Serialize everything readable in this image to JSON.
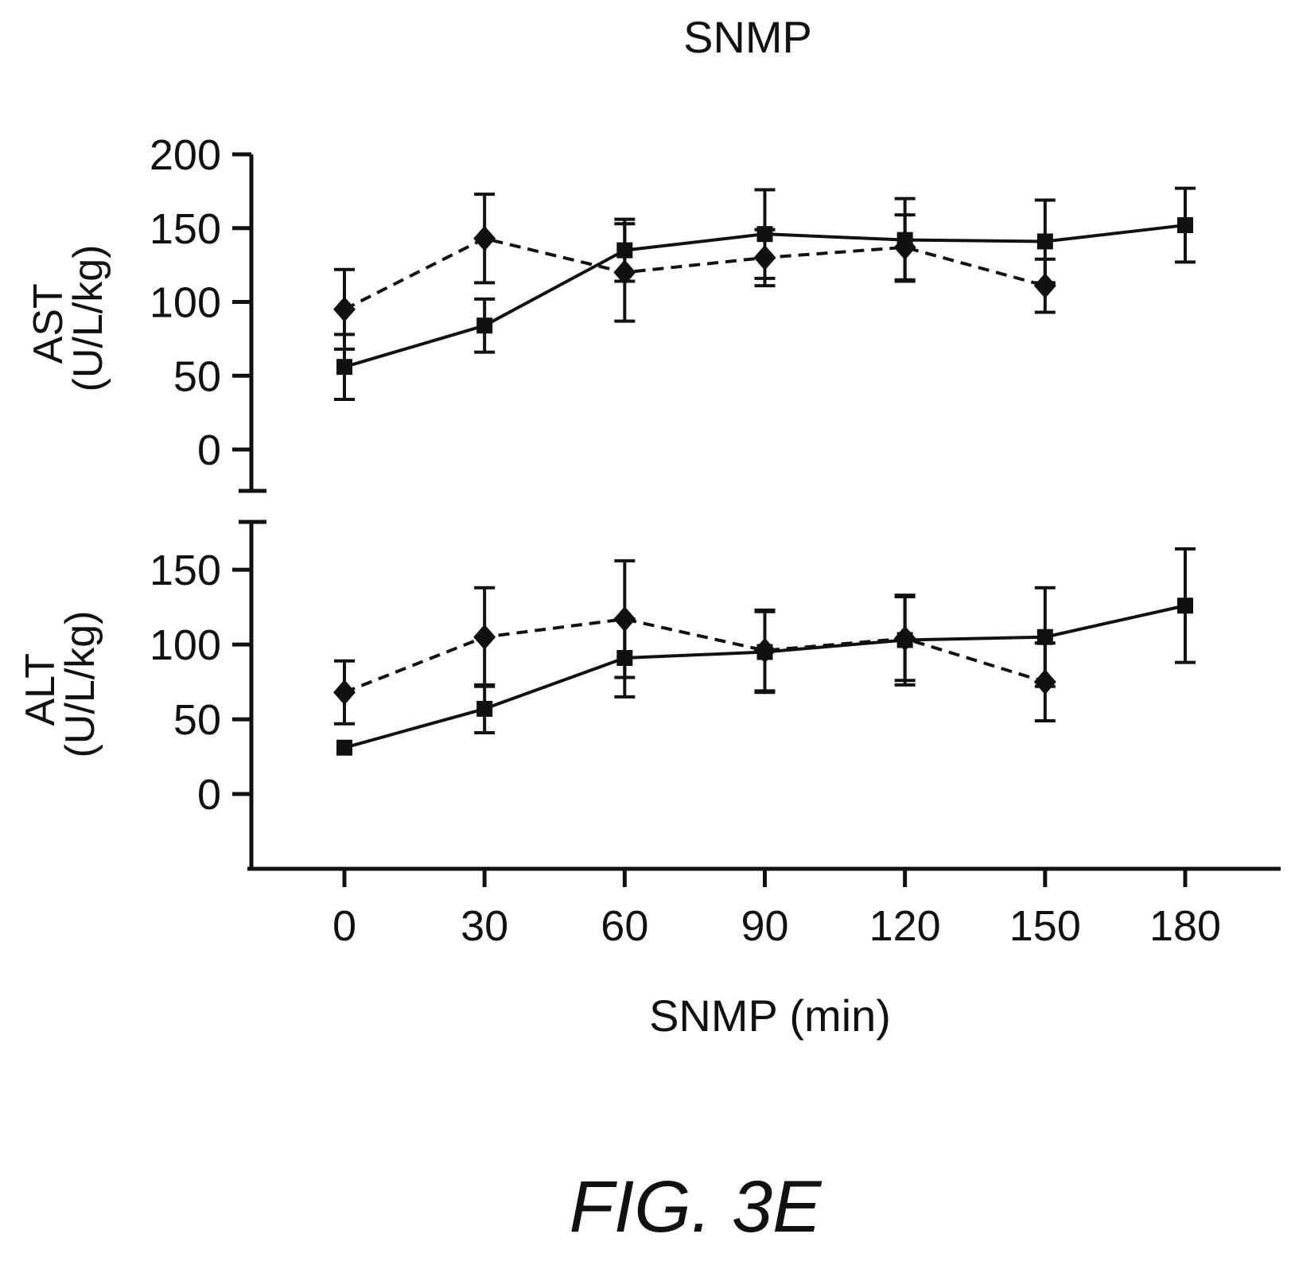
{
  "title": "SNMP",
  "caption": "FIG. 3E",
  "chart_data": [
    {
      "type": "line",
      "panel": "top",
      "ylabel_line1": "AST",
      "ylabel_line2": "(U/L/kg)",
      "ylim": [
        -28,
        200
      ],
      "yticks": [
        0,
        50,
        100,
        150,
        200
      ],
      "x": [
        0,
        30,
        60,
        90,
        120,
        150,
        180
      ],
      "series": [
        {
          "marker": "square",
          "line_style": "solid",
          "x": [
            0,
            30,
            60,
            90,
            120,
            150,
            180
          ],
          "values": [
            56,
            84,
            135,
            146,
            142,
            141,
            152
          ],
          "error": [
            22,
            18,
            21,
            30,
            28,
            28,
            25
          ]
        },
        {
          "marker": "diamond",
          "line_style": "dashed",
          "x": [
            0,
            30,
            60,
            90,
            120,
            150
          ],
          "values": [
            95,
            143,
            120,
            130,
            137,
            111
          ],
          "error": [
            27,
            30,
            33,
            19,
            22,
            18
          ]
        }
      ]
    },
    {
      "type": "line",
      "panel": "bottom",
      "ylabel_line1": "ALT",
      "ylabel_line2": "(U/L/kg)",
      "ylim": [
        -50,
        182
      ],
      "yticks": [
        0,
        50,
        100,
        150
      ],
      "x": [
        0,
        30,
        60,
        90,
        120,
        150,
        180
      ],
      "xticks": [
        0,
        30,
        60,
        90,
        120,
        150,
        180
      ],
      "xlabel": "SNMP (min)",
      "series": [
        {
          "marker": "square",
          "line_style": "solid",
          "x": [
            0,
            30,
            60,
            90,
            120,
            150,
            180
          ],
          "values": [
            31,
            57,
            91,
            95,
            103,
            105,
            126
          ],
          "error": [
            0,
            16,
            26,
            27,
            30,
            33,
            38
          ]
        },
        {
          "marker": "diamond",
          "line_style": "dashed",
          "x": [
            0,
            30,
            60,
            90,
            120,
            150
          ],
          "values": [
            68,
            105,
            117,
            96,
            104,
            75
          ],
          "error": [
            21,
            33,
            39,
            27,
            28,
            26
          ]
        }
      ]
    }
  ]
}
